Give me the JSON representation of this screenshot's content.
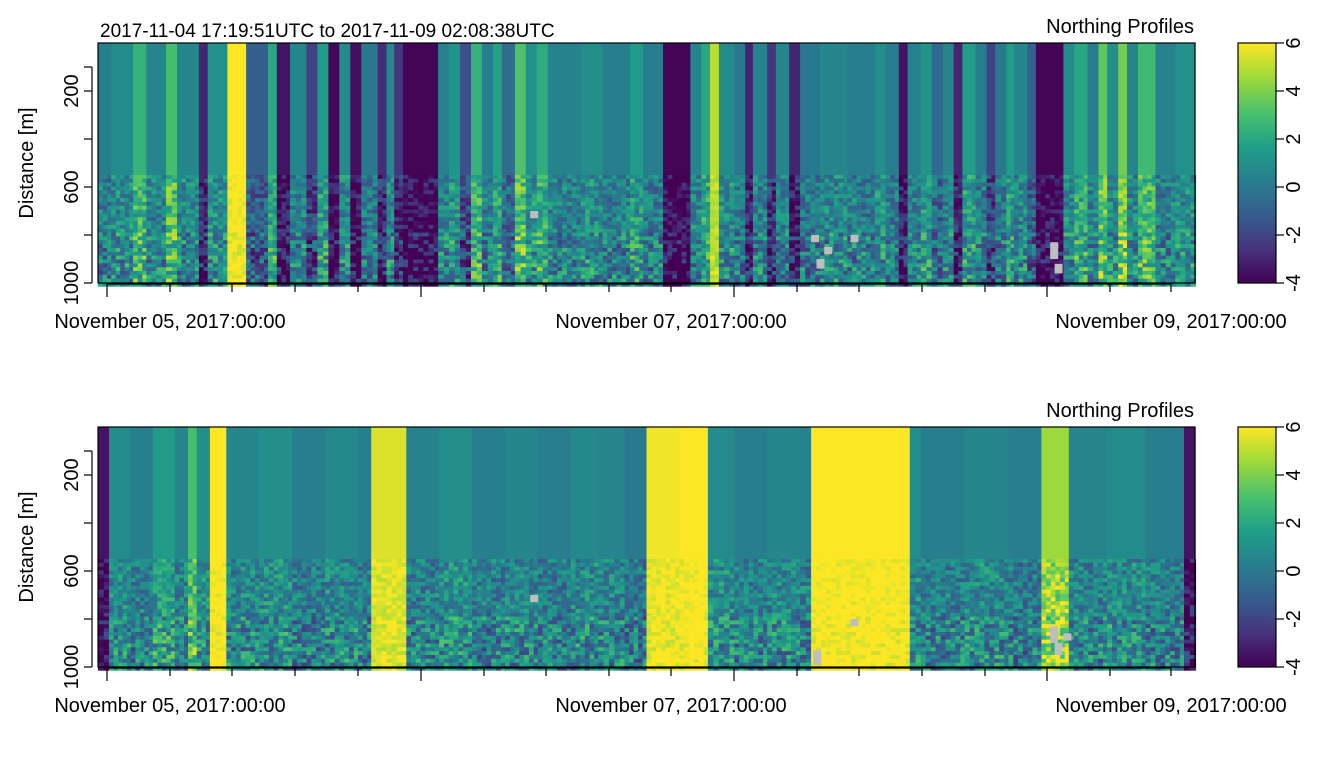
{
  "header": {
    "time_range": "2017-11-04 17:19:51UTC to 2017-11-09 02:08:38UTC"
  },
  "palette": [
    "#440154",
    "#46337e",
    "#365c8d",
    "#277f8e",
    "#1fa187",
    "#4ac16d",
    "#a0da39",
    "#fde725"
  ],
  "na_color": "#bebebe",
  "chart_data": [
    {
      "type": "heatmap",
      "title": "Northing Profiles",
      "ylabel": "Distance [m]",
      "ylim": [
        1000,
        0
      ],
      "yticks": [
        200,
        600,
        1000
      ],
      "x_tick_labels": [
        "November 05, 2017:00:00",
        "November 07, 2017:00:00",
        "November 09, 2017:00:00"
      ],
      "colorbar": {
        "range": [
          -4,
          6
        ],
        "ticks": [
          6,
          4,
          2,
          0,
          -2,
          -4
        ]
      },
      "columns": [
        {
          "x_frac": 0.0,
          "w_frac": 0.012,
          "value": 0.3
        },
        {
          "x_frac": 0.012,
          "w_frac": 0.02,
          "value": 0.8
        },
        {
          "x_frac": 0.032,
          "w_frac": 0.012,
          "value": 2.5
        },
        {
          "x_frac": 0.044,
          "w_frac": 0.018,
          "value": 0.5
        },
        {
          "x_frac": 0.062,
          "w_frac": 0.01,
          "value": 3.0
        },
        {
          "x_frac": 0.072,
          "w_frac": 0.02,
          "value": 0.6
        },
        {
          "x_frac": 0.092,
          "w_frac": 0.008,
          "value": -3.0
        },
        {
          "x_frac": 0.1,
          "w_frac": 0.018,
          "value": 1.0
        },
        {
          "x_frac": 0.118,
          "w_frac": 0.017,
          "value": 6.0
        },
        {
          "x_frac": 0.135,
          "w_frac": 0.02,
          "value": -1.0
        },
        {
          "x_frac": 0.155,
          "w_frac": 0.008,
          "value": 2.0
        },
        {
          "x_frac": 0.163,
          "w_frac": 0.012,
          "value": -3.5
        },
        {
          "x_frac": 0.175,
          "w_frac": 0.015,
          "value": 0.5
        },
        {
          "x_frac": 0.19,
          "w_frac": 0.01,
          "value": -2.0
        },
        {
          "x_frac": 0.2,
          "w_frac": 0.01,
          "value": 1.5
        },
        {
          "x_frac": 0.21,
          "w_frac": 0.01,
          "value": -3.8
        },
        {
          "x_frac": 0.22,
          "w_frac": 0.01,
          "value": 0.8
        },
        {
          "x_frac": 0.23,
          "w_frac": 0.01,
          "value": -3.6
        },
        {
          "x_frac": 0.24,
          "w_frac": 0.015,
          "value": 0.0
        },
        {
          "x_frac": 0.255,
          "w_frac": 0.008,
          "value": -2.8
        },
        {
          "x_frac": 0.263,
          "w_frac": 0.007,
          "value": 0.6
        },
        {
          "x_frac": 0.27,
          "w_frac": 0.008,
          "value": -2.5
        },
        {
          "x_frac": 0.278,
          "w_frac": 0.032,
          "value": -3.9
        },
        {
          "x_frac": 0.31,
          "w_frac": 0.01,
          "value": 0.4
        },
        {
          "x_frac": 0.32,
          "w_frac": 0.01,
          "value": 1.2
        },
        {
          "x_frac": 0.33,
          "w_frac": 0.01,
          "value": -1.5
        },
        {
          "x_frac": 0.34,
          "w_frac": 0.01,
          "value": 2.5
        },
        {
          "x_frac": 0.35,
          "w_frac": 0.01,
          "value": 0.2
        },
        {
          "x_frac": 0.36,
          "w_frac": 0.008,
          "value": 1.8
        },
        {
          "x_frac": 0.368,
          "w_frac": 0.012,
          "value": -0.5
        },
        {
          "x_frac": 0.38,
          "w_frac": 0.01,
          "value": 3.2
        },
        {
          "x_frac": 0.39,
          "w_frac": 0.01,
          "value": 1.0
        },
        {
          "x_frac": 0.4,
          "w_frac": 0.01,
          "value": 2.2
        },
        {
          "x_frac": 0.41,
          "w_frac": 0.03,
          "value": 0.4
        },
        {
          "x_frac": 0.44,
          "w_frac": 0.02,
          "value": 0.9
        },
        {
          "x_frac": 0.46,
          "w_frac": 0.025,
          "value": 0.3
        },
        {
          "x_frac": 0.485,
          "w_frac": 0.012,
          "value": 1.4
        },
        {
          "x_frac": 0.497,
          "w_frac": 0.018,
          "value": 0.2
        },
        {
          "x_frac": 0.515,
          "w_frac": 0.025,
          "value": -3.9
        },
        {
          "x_frac": 0.54,
          "w_frac": 0.01,
          "value": 0.5
        },
        {
          "x_frac": 0.55,
          "w_frac": 0.008,
          "value": 2.0
        },
        {
          "x_frac": 0.558,
          "w_frac": 0.008,
          "value": 5.0
        },
        {
          "x_frac": 0.566,
          "w_frac": 0.014,
          "value": 0.8
        },
        {
          "x_frac": 0.58,
          "w_frac": 0.01,
          "value": 0.0
        },
        {
          "x_frac": 0.59,
          "w_frac": 0.007,
          "value": -3.0
        },
        {
          "x_frac": 0.597,
          "w_frac": 0.013,
          "value": 0.4
        },
        {
          "x_frac": 0.61,
          "w_frac": 0.008,
          "value": -2.5
        },
        {
          "x_frac": 0.618,
          "w_frac": 0.012,
          "value": 0.5
        },
        {
          "x_frac": 0.63,
          "w_frac": 0.01,
          "value": -3.0
        },
        {
          "x_frac": 0.64,
          "w_frac": 0.018,
          "value": 0.0
        },
        {
          "x_frac": 0.658,
          "w_frac": 0.025,
          "value": 0.6
        },
        {
          "x_frac": 0.683,
          "w_frac": 0.025,
          "value": 0.3
        },
        {
          "x_frac": 0.708,
          "w_frac": 0.01,
          "value": 0.9
        },
        {
          "x_frac": 0.718,
          "w_frac": 0.012,
          "value": 0.2
        },
        {
          "x_frac": 0.73,
          "w_frac": 0.008,
          "value": -3.5
        },
        {
          "x_frac": 0.738,
          "w_frac": 0.012,
          "value": 0.4
        },
        {
          "x_frac": 0.75,
          "w_frac": 0.01,
          "value": 1.2
        },
        {
          "x_frac": 0.76,
          "w_frac": 0.01,
          "value": -0.6
        },
        {
          "x_frac": 0.77,
          "w_frac": 0.01,
          "value": 0.5
        },
        {
          "x_frac": 0.78,
          "w_frac": 0.008,
          "value": -3.0
        },
        {
          "x_frac": 0.788,
          "w_frac": 0.012,
          "value": 1.5
        },
        {
          "x_frac": 0.8,
          "w_frac": 0.01,
          "value": 0.2
        },
        {
          "x_frac": 0.81,
          "w_frac": 0.008,
          "value": -2.0
        },
        {
          "x_frac": 0.818,
          "w_frac": 0.01,
          "value": 0.0
        },
        {
          "x_frac": 0.828,
          "w_frac": 0.007,
          "value": 1.5
        },
        {
          "x_frac": 0.835,
          "w_frac": 0.012,
          "value": 0.6
        },
        {
          "x_frac": 0.847,
          "w_frac": 0.008,
          "value": -1.0
        },
        {
          "x_frac": 0.855,
          "w_frac": 0.025,
          "value": -3.9
        },
        {
          "x_frac": 0.88,
          "w_frac": 0.01,
          "value": 0.8
        },
        {
          "x_frac": 0.89,
          "w_frac": 0.012,
          "value": 2.0
        },
        {
          "x_frac": 0.902,
          "w_frac": 0.01,
          "value": 0.3
        },
        {
          "x_frac": 0.912,
          "w_frac": 0.008,
          "value": 3.5
        },
        {
          "x_frac": 0.92,
          "w_frac": 0.01,
          "value": 0.9
        },
        {
          "x_frac": 0.93,
          "w_frac": 0.008,
          "value": 3.8
        },
        {
          "x_frac": 0.938,
          "w_frac": 0.01,
          "value": 0.5
        },
        {
          "x_frac": 0.948,
          "w_frac": 0.016,
          "value": 2.8
        },
        {
          "x_frac": 0.964,
          "w_frac": 0.018,
          "value": 0.4
        },
        {
          "x_frac": 0.982,
          "w_frac": 0.018,
          "value": 1.0
        }
      ],
      "na_cells": [
        {
          "x_frac": 0.65,
          "d0": 800,
          "d1": 830
        },
        {
          "x_frac": 0.655,
          "d0": 900,
          "d1": 940
        },
        {
          "x_frac": 0.662,
          "d0": 850,
          "d1": 880
        },
        {
          "x_frac": 0.686,
          "d0": 800,
          "d1": 830
        },
        {
          "x_frac": 0.868,
          "d0": 830,
          "d1": 900
        },
        {
          "x_frac": 0.872,
          "d0": 920,
          "d1": 960
        },
        {
          "x_frac": 0.394,
          "d0": 700,
          "d1": 730
        }
      ]
    },
    {
      "type": "heatmap",
      "title": "Northing Profiles",
      "ylabel": "Distance [m]",
      "ylim": [
        1000,
        0
      ],
      "yticks": [
        200,
        600,
        1000
      ],
      "x_tick_labels": [
        "November 05, 2017:00:00",
        "November 07, 2017:00:00",
        "November 09, 2017:00:00"
      ],
      "colorbar": {
        "range": [
          -4,
          6
        ],
        "ticks": [
          6,
          4,
          2,
          0,
          -2,
          -4
        ]
      },
      "columns": [
        {
          "x_frac": 0.0,
          "w_frac": 0.01,
          "value": -3.5
        },
        {
          "x_frac": 0.01,
          "w_frac": 0.02,
          "value": 0.8
        },
        {
          "x_frac": 0.03,
          "w_frac": 0.02,
          "value": 0.3
        },
        {
          "x_frac": 0.05,
          "w_frac": 0.02,
          "value": 1.5
        },
        {
          "x_frac": 0.07,
          "w_frac": 0.012,
          "value": 0.5
        },
        {
          "x_frac": 0.082,
          "w_frac": 0.008,
          "value": 3.0
        },
        {
          "x_frac": 0.09,
          "w_frac": 0.012,
          "value": 0.9
        },
        {
          "x_frac": 0.102,
          "w_frac": 0.015,
          "value": 6.0
        },
        {
          "x_frac": 0.117,
          "w_frac": 0.03,
          "value": 0.6
        },
        {
          "x_frac": 0.147,
          "w_frac": 0.03,
          "value": 0.9
        },
        {
          "x_frac": 0.177,
          "w_frac": 0.03,
          "value": 0.2
        },
        {
          "x_frac": 0.207,
          "w_frac": 0.03,
          "value": 0.7
        },
        {
          "x_frac": 0.237,
          "w_frac": 0.012,
          "value": 0.3
        },
        {
          "x_frac": 0.249,
          "w_frac": 0.032,
          "value": 5.5
        },
        {
          "x_frac": 0.281,
          "w_frac": 0.03,
          "value": 0.4
        },
        {
          "x_frac": 0.311,
          "w_frac": 0.03,
          "value": 0.9
        },
        {
          "x_frac": 0.341,
          "w_frac": 0.03,
          "value": 0.3
        },
        {
          "x_frac": 0.371,
          "w_frac": 0.03,
          "value": 0.6
        },
        {
          "x_frac": 0.401,
          "w_frac": 0.03,
          "value": 0.2
        },
        {
          "x_frac": 0.431,
          "w_frac": 0.025,
          "value": 0.7
        },
        {
          "x_frac": 0.456,
          "w_frac": 0.024,
          "value": 0.5
        },
        {
          "x_frac": 0.48,
          "w_frac": 0.02,
          "value": 0.1
        },
        {
          "x_frac": 0.5,
          "w_frac": 0.03,
          "value": 5.8
        },
        {
          "x_frac": 0.53,
          "w_frac": 0.026,
          "value": 6.0
        },
        {
          "x_frac": 0.556,
          "w_frac": 0.024,
          "value": 0.8
        },
        {
          "x_frac": 0.58,
          "w_frac": 0.03,
          "value": 0.3
        },
        {
          "x_frac": 0.61,
          "w_frac": 0.03,
          "value": 0.6
        },
        {
          "x_frac": 0.64,
          "w_frac": 0.01,
          "value": 0.4
        },
        {
          "x_frac": 0.65,
          "w_frac": 0.09,
          "value": 6.0
        },
        {
          "x_frac": 0.74,
          "w_frac": 0.01,
          "value": 0.9
        },
        {
          "x_frac": 0.75,
          "w_frac": 0.04,
          "value": 0.3
        },
        {
          "x_frac": 0.79,
          "w_frac": 0.04,
          "value": 0.6
        },
        {
          "x_frac": 0.83,
          "w_frac": 0.03,
          "value": 0.2
        },
        {
          "x_frac": 0.86,
          "w_frac": 0.025,
          "value": 4.5
        },
        {
          "x_frac": 0.885,
          "w_frac": 0.035,
          "value": 0.5
        },
        {
          "x_frac": 0.92,
          "w_frac": 0.035,
          "value": 0.8
        },
        {
          "x_frac": 0.955,
          "w_frac": 0.035,
          "value": 0.3
        },
        {
          "x_frac": 0.99,
          "w_frac": 0.01,
          "value": -3.5
        }
      ],
      "na_cells": [
        {
          "x_frac": 0.652,
          "d0": 930,
          "d1": 990
        },
        {
          "x_frac": 0.868,
          "d0": 830,
          "d1": 900
        },
        {
          "x_frac": 0.872,
          "d0": 900,
          "d1": 950
        },
        {
          "x_frac": 0.88,
          "d0": 860,
          "d1": 890
        },
        {
          "x_frac": 0.394,
          "d0": 700,
          "d1": 730
        },
        {
          "x_frac": 0.686,
          "d0": 800,
          "d1": 830
        }
      ]
    }
  ]
}
